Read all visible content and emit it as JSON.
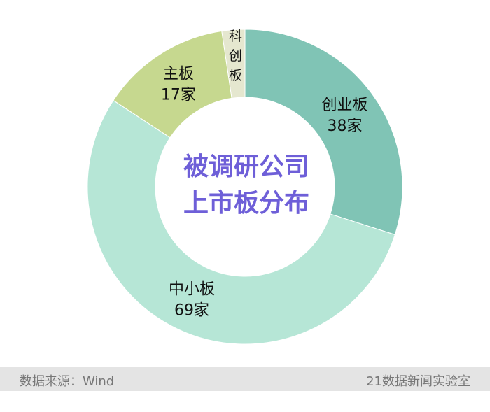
{
  "chart_data": {
    "type": "pie",
    "donut": true,
    "title": "被调研公司\n上市板分布",
    "title_lines": [
      "被调研公司",
      "上市板分布"
    ],
    "categories": [
      "科创板",
      "创业板",
      "中小板",
      "主板"
    ],
    "values": [
      3,
      38,
      69,
      17
    ],
    "value_labels": [
      "",
      "38家",
      "69家",
      "17家"
    ],
    "value_shown": [
      false,
      true,
      true,
      true
    ],
    "colors": [
      "#e5e7cf",
      "#80c4b5",
      "#b6e6d6",
      "#c6d88f"
    ],
    "title_color": "#6e5fd8",
    "legend": "none"
  },
  "footer": {
    "source": "数据来源：Wind",
    "credit": "21数据新闻实验室"
  }
}
